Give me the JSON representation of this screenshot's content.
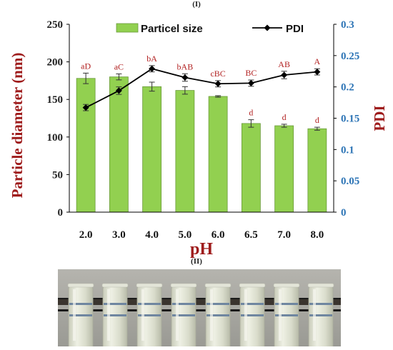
{
  "figure": {
    "panel_labels": [
      "(I)",
      "(II)"
    ]
  },
  "colors": {
    "bar_fill": "#92d050",
    "bar_stroke": "#6a9a3a",
    "pdi_line": "#000000",
    "left_axis": "#1f1f1f",
    "right_axis": "#2e75b6",
    "title_red": "#9e1b1b",
    "sig_letters": "#b22222"
  },
  "chart_data": {
    "type": "bar",
    "categories": [
      "2.0",
      "3.0",
      "4.0",
      "5.0",
      "6.0",
      "6.5",
      "7.0",
      "8.0"
    ],
    "xlabel": "pH",
    "ylabel": "Particle diameter (nm)",
    "ylabel_right": "PDI",
    "ylim": [
      0,
      250
    ],
    "yticks": [
      0,
      50,
      100,
      150,
      200,
      250
    ],
    "ylim_right": [
      0,
      0.3
    ],
    "yticks_right": [
      "0",
      "0.05",
      "0.1",
      "0.15",
      "0.2",
      "0.25",
      "0.3"
    ],
    "series": [
      {
        "name": "Particel size",
        "type": "bar",
        "axis": "left",
        "values": [
          178,
          180,
          167,
          162,
          154,
          118,
          115,
          111
        ],
        "errors": [
          7,
          4,
          6,
          5,
          1,
          5,
          2,
          2
        ],
        "labels": [
          "aD",
          "aC",
          "bA",
          "bAB",
          "cBC",
          "d",
          "d",
          "d"
        ]
      },
      {
        "name": "PDI",
        "type": "line",
        "axis": "right",
        "values": [
          0.167,
          0.194,
          0.229,
          0.215,
          0.205,
          0.206,
          0.219,
          0.224
        ],
        "errors": [
          0.005,
          0.006,
          0.005,
          0.006,
          0.005,
          0.005,
          0.006,
          0.005
        ],
        "labels": [
          "",
          "",
          "",
          "",
          "",
          "BC",
          "AB",
          "A"
        ]
      }
    ],
    "legend": "top-center",
    "grid": false
  },
  "photo": {
    "tubes": 8,
    "colors": {
      "backdrop": "#9a9a94",
      "board": "#3a342e",
      "tube": "#d9dccb",
      "tube_highlight": "#eef0e4",
      "band": "#6f86a0",
      "black_line": "#1a1a1a"
    }
  }
}
